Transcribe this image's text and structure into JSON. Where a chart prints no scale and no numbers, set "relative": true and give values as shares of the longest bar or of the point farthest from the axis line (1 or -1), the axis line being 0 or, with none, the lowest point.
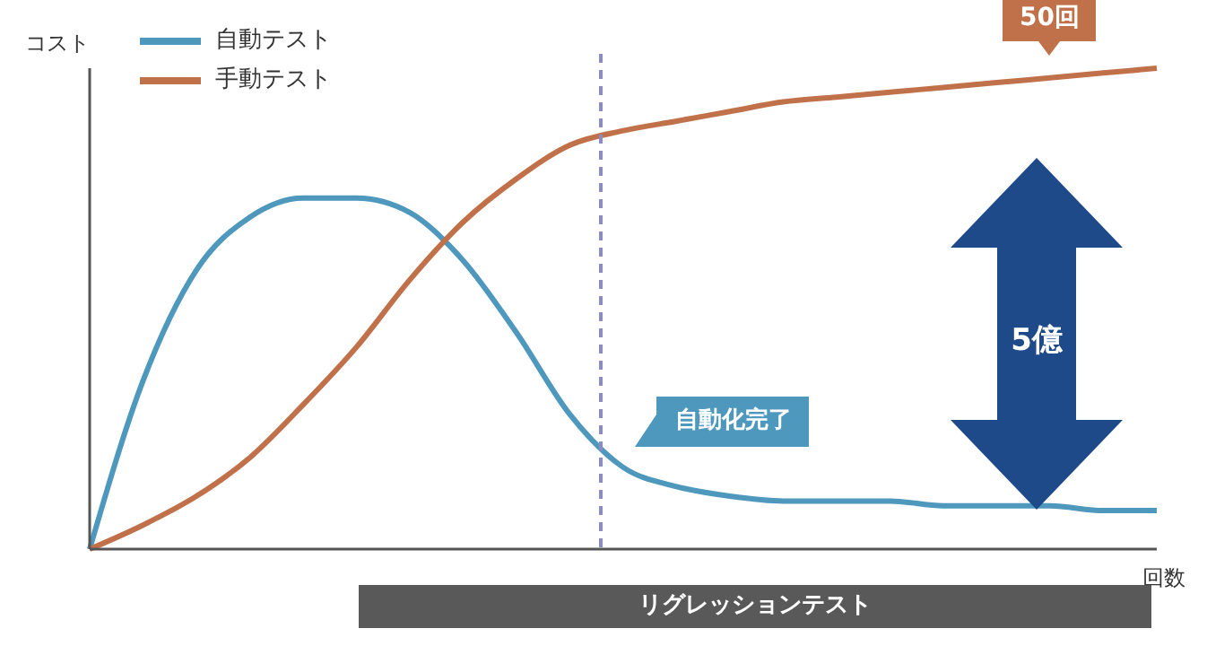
{
  "chart_data": {
    "type": "line",
    "relative": true,
    "xlabel": "回数",
    "ylabel": "コスト",
    "tick_labels": false,
    "legend": "top left",
    "grid": false,
    "marker": "none",
    "line_style": "solid",
    "categories": [
      null,
      null,
      null,
      null,
      null,
      null,
      null,
      null,
      null,
      null,
      null,
      null,
      null,
      null,
      null,
      null,
      null,
      null,
      null,
      null,
      null
    ],
    "series": [
      {
        "name": "自動テスト",
        "color": "#4e97bd",
        "values": [
          0,
          0.35,
          0.58,
          0.69,
          0.73,
          0.73,
          0.7,
          0.6,
          0.45,
          0.28,
          0.17,
          0.13,
          0.11,
          0.1,
          0.1,
          0.1,
          0.09,
          0.09,
          0.09,
          0.08,
          0.08
        ]
      },
      {
        "name": "手動テスト",
        "color": "#c0714a",
        "values": [
          0,
          0.05,
          0.11,
          0.19,
          0.3,
          0.42,
          0.56,
          0.68,
          0.77,
          0.84,
          0.87,
          0.89,
          0.91,
          0.93,
          0.94,
          0.95,
          0.96,
          0.97,
          0.98,
          0.99,
          1
        ]
      }
    ],
    "ref_lines": [
      {
        "axis": "x",
        "color": "#8c8cc0",
        "line_style": "dashed"
      }
    ],
    "annotations": [
      "50回",
      "自動化完了",
      "5億",
      "リグレッションテスト"
    ]
  }
}
